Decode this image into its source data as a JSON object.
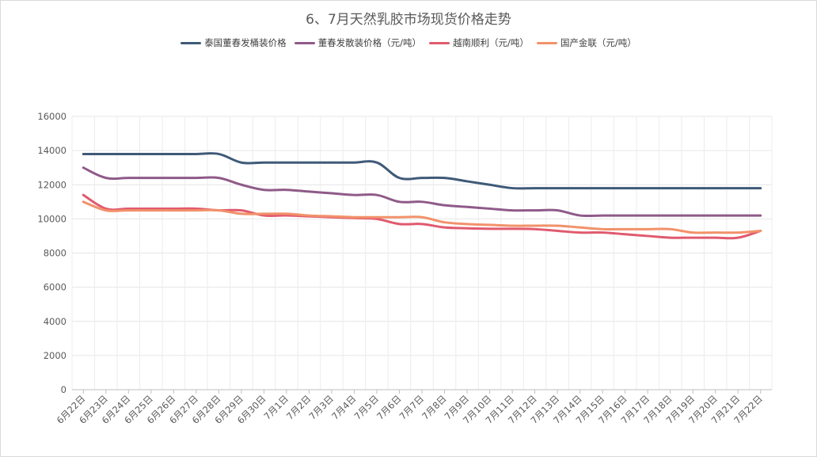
{
  "chart_data": {
    "type": "line",
    "title": "6、7月天然乳胶市场现货价格走势",
    "xlabel": "",
    "ylabel": "",
    "ylim": [
      0,
      16000
    ],
    "yticks": [
      0,
      2000,
      4000,
      6000,
      8000,
      10000,
      12000,
      14000,
      16000
    ],
    "grid": true,
    "legend_position": "top",
    "categories": [
      "6月22日",
      "6月23日",
      "6月24日",
      "6月25日",
      "6月26日",
      "6月27日",
      "6月28日",
      "6月29日",
      "6月30日",
      "7月1日",
      "7月2日",
      "7月3日",
      "7月4日",
      "7月5日",
      "7月6日",
      "7月7日",
      "7月8日",
      "7月9日",
      "7月10日",
      "7月11日",
      "7月12日",
      "7月13日",
      "7月14日",
      "7月15日",
      "7月16日",
      "7月17日",
      "7月18日",
      "7月19日",
      "7月20日",
      "7月21日",
      "7月22日"
    ],
    "series": [
      {
        "name": "泰国董春发桶装价格",
        "color": "#3f5a78",
        "values": [
          13800,
          13800,
          13800,
          13800,
          13800,
          13800,
          13800,
          13300,
          13300,
          13300,
          13300,
          13300,
          13300,
          13300,
          12400,
          12400,
          12400,
          12200,
          12000,
          11800,
          11800,
          11800,
          11800,
          11800,
          11800,
          11800,
          11800,
          11800,
          11800,
          11800,
          11800
        ]
      },
      {
        "name": "董春发散装价格（元/吨）",
        "color": "#8f5a88",
        "values": [
          13000,
          12400,
          12400,
          12400,
          12400,
          12400,
          12400,
          12000,
          11700,
          11700,
          11600,
          11500,
          11400,
          11400,
          11000,
          11000,
          10800,
          10700,
          10600,
          10500,
          10500,
          10500,
          10200,
          10200,
          10200,
          10200,
          10200,
          10200,
          10200,
          10200,
          10200
        ]
      },
      {
        "name": "越南顺利（元/吨）",
        "color": "#e05a6e",
        "values": [
          11400,
          10600,
          10600,
          10600,
          10600,
          10600,
          10500,
          10500,
          10200,
          10200,
          10150,
          10100,
          10050,
          10000,
          9700,
          9700,
          9500,
          9450,
          9420,
          9420,
          9400,
          9300,
          9200,
          9200,
          9100,
          9000,
          8900,
          8900,
          8900,
          8900,
          9300
        ]
      },
      {
        "name": "国产金联（元/吨）",
        "color": "#f2916a",
        "values": [
          11000,
          10500,
          10500,
          10500,
          10500,
          10500,
          10500,
          10300,
          10300,
          10300,
          10200,
          10150,
          10100,
          10100,
          10100,
          10100,
          9800,
          9700,
          9650,
          9600,
          9600,
          9600,
          9500,
          9400,
          9400,
          9400,
          9400,
          9200,
          9200,
          9200,
          9300
        ]
      }
    ]
  }
}
